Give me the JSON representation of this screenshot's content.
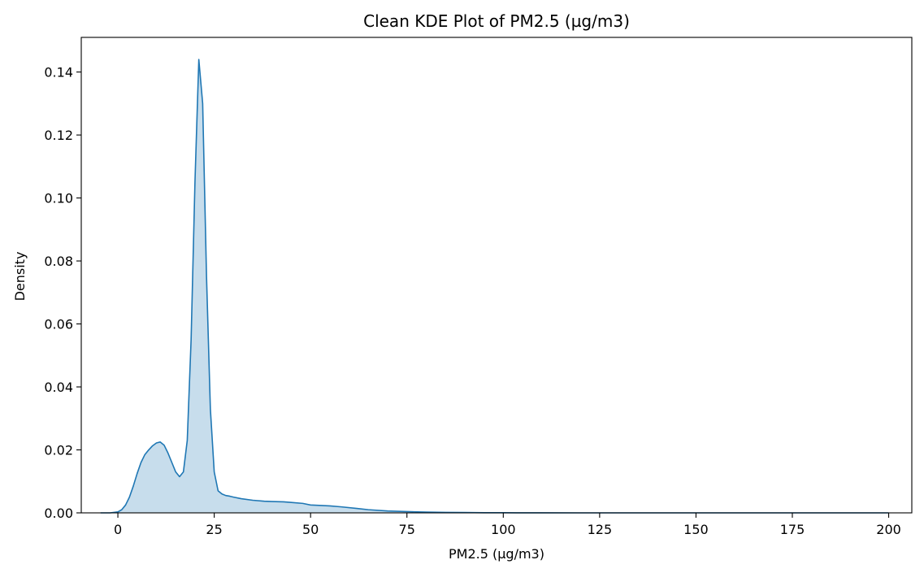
{
  "chart_data": {
    "type": "area",
    "title": "Clean KDE Plot of PM2.5 (µg/m3)",
    "xlabel": "PM2.5 (µg/m3)",
    "ylabel": "Density",
    "xlim": [
      -9.5,
      206
    ],
    "ylim": [
      0,
      0.151
    ],
    "xticks": [
      0,
      25,
      50,
      75,
      100,
      125,
      150,
      175,
      200
    ],
    "xtick_labels": [
      "0",
      "25",
      "50",
      "75",
      "100",
      "125",
      "150",
      "175",
      "200"
    ],
    "yticks": [
      0,
      0.02,
      0.04,
      0.06,
      0.08,
      0.1,
      0.12,
      0.14
    ],
    "ytick_labels": [
      "0.00",
      "0.02",
      "0.04",
      "0.06",
      "0.08",
      "0.10",
      "0.12",
      "0.14"
    ],
    "grid": false,
    "series": [
      {
        "color": "#1f77b4",
        "fill_color": "#1f77b4",
        "fill_opacity": 0.25,
        "x": [
          -4.5,
          -2,
          0,
          1,
          2,
          3,
          4,
          5,
          6,
          7,
          8,
          9,
          10,
          11,
          12,
          13,
          14,
          15,
          16,
          17,
          18,
          19,
          20,
          21,
          22,
          23,
          24,
          25,
          26,
          27,
          28,
          29,
          30,
          32,
          35,
          38,
          40,
          43,
          45,
          48,
          50,
          55,
          58,
          62,
          65,
          70,
          75,
          80,
          85,
          90,
          95,
          100,
          105,
          110,
          120,
          130,
          150,
          175,
          200
        ],
        "y": [
          0,
          0,
          0.0003,
          0.001,
          0.0025,
          0.005,
          0.0085,
          0.0125,
          0.016,
          0.0185,
          0.02,
          0.0213,
          0.0222,
          0.0225,
          0.0215,
          0.019,
          0.016,
          0.013,
          0.0115,
          0.013,
          0.023,
          0.055,
          0.105,
          0.144,
          0.13,
          0.075,
          0.033,
          0.013,
          0.007,
          0.006,
          0.0055,
          0.0053,
          0.005,
          0.0045,
          0.004,
          0.0037,
          0.0036,
          0.0035,
          0.0033,
          0.003,
          0.0025,
          0.0022,
          0.0019,
          0.0014,
          0.001,
          0.0006,
          0.0004,
          0.00025,
          0.00015,
          0.0001,
          6e-05,
          4e-05,
          2e-05,
          1e-05,
          0,
          0,
          0,
          0,
          0
        ]
      }
    ]
  }
}
